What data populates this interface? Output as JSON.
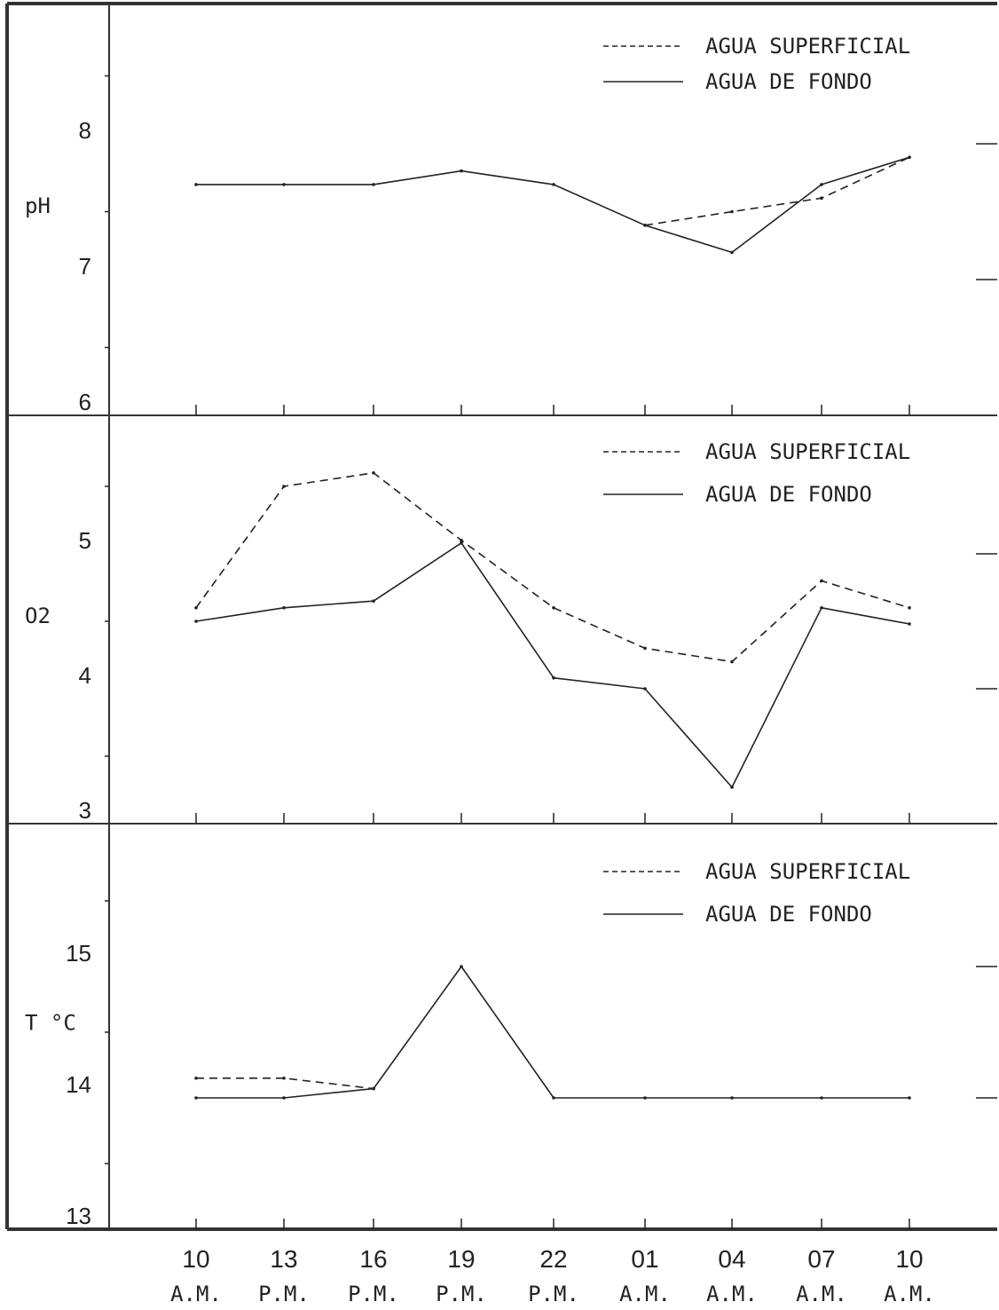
{
  "chart_data": [
    {
      "type": "line",
      "ylabel": "pH",
      "ylim": [
        6,
        9
      ],
      "yticks": [
        "6",
        "7",
        "8"
      ],
      "legend": {
        "position": "top-right",
        "entries": [
          "AGUA SUPERFICIAL",
          "AGUA DE FONDO"
        ]
      },
      "series": [
        {
          "name": "AGUA SUPERFICIAL",
          "style": "dashed",
          "values": [
            null,
            null,
            null,
            null,
            null,
            7.4,
            7.5,
            7.6,
            7.9
          ]
        },
        {
          "name": "AGUA DE FONDO",
          "style": "solid",
          "values": [
            7.7,
            7.7,
            7.7,
            7.8,
            7.7,
            7.4,
            7.2,
            7.7,
            7.9
          ]
        }
      ]
    },
    {
      "type": "line",
      "ylabel": "O2",
      "ylim": [
        3,
        6
      ],
      "yticks": [
        "3",
        "4",
        "5"
      ],
      "legend": {
        "position": "top-right",
        "entries": [
          "AGUA SUPERFICIAL",
          "AGUA DE FONDO"
        ]
      },
      "series": [
        {
          "name": "AGUA SUPERFICIAL",
          "style": "dashed",
          "values": [
            4.6,
            5.5,
            5.6,
            5.1,
            4.6,
            4.3,
            4.2,
            4.8,
            4.6
          ]
        },
        {
          "name": "AGUA DE FONDO",
          "style": "solid",
          "values": [
            4.5,
            4.6,
            4.65,
            5.08,
            4.08,
            4.0,
            3.27,
            4.6,
            4.48
          ]
        }
      ]
    },
    {
      "type": "line",
      "ylabel": "T °C",
      "ylim": [
        13,
        16
      ],
      "yticks": [
        "13",
        "14",
        "15"
      ],
      "legend": {
        "position": "top-right",
        "entries": [
          "AGUA SUPERFICIAL",
          "AGUA DE FONDO"
        ]
      },
      "series": [
        {
          "name": "AGUA SUPERFICIAL",
          "style": "dashed",
          "values": [
            14.15,
            14.15,
            14.07,
            null,
            null,
            null,
            null,
            null,
            null
          ]
        },
        {
          "name": "AGUA DE FONDO",
          "style": "solid",
          "values": [
            14.0,
            14.0,
            14.07,
            15.0,
            14.0,
            14.0,
            14.0,
            14.0,
            14.0
          ]
        }
      ]
    }
  ],
  "x_hours": [
    "10",
    "13",
    "16",
    "19",
    "22",
    "01",
    "04",
    "07",
    "10"
  ],
  "x_periods": [
    "A.M.",
    "P.M.",
    "P.M.",
    "P.M.",
    "P.M.",
    "A.M.",
    "A.M.",
    "A.M.",
    "A.M."
  ],
  "colors": {
    "ink": "#222222",
    "frame": "#333333",
    "background": "#ffffff"
  }
}
